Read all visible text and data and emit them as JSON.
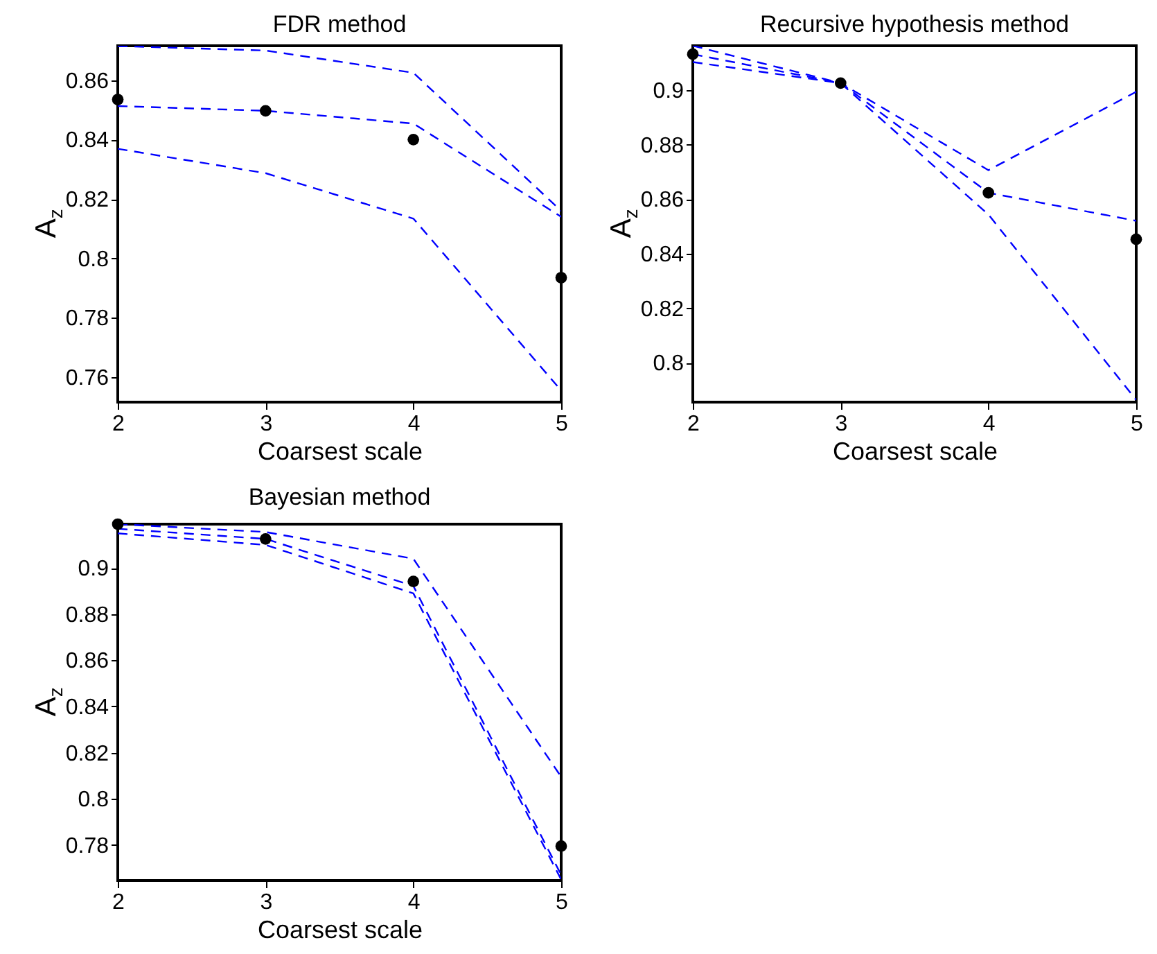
{
  "chart_data": [
    {
      "type": "line",
      "title": "FDR method",
      "xlabel": "Coarsest scale",
      "ylabel": "A$_{z}$",
      "x": [
        2,
        3,
        4,
        5
      ],
      "xlim": [
        2,
        5
      ],
      "xticks": [
        2,
        3,
        4,
        5
      ],
      "ylim": [
        0.7516,
        0.8716
      ],
      "yticks": [
        0.76,
        0.78,
        0.8,
        0.82,
        0.84,
        0.86
      ],
      "line_style": "dashed",
      "series": [
        {
          "type": "line",
          "color": "#0000ff",
          "values": [
            0.8715,
            0.87,
            0.8625,
            0.816
          ]
        },
        {
          "type": "line",
          "color": "#0000ff",
          "values": [
            0.8513,
            0.8497,
            0.8454,
            0.814
          ]
        },
        {
          "type": "line",
          "color": "#0000ff",
          "values": [
            0.8369,
            0.8287,
            0.8134,
            0.7555
          ]
        },
        {
          "type": "scatter",
          "marker": "circle",
          "color": "#000000",
          "values": [
            0.8535,
            0.8497,
            0.84,
            0.7935
          ]
        }
      ]
    },
    {
      "type": "line",
      "title": "Recursive hypothesis method",
      "xlabel": "Coarsest scale",
      "ylabel": "A$_{z}$",
      "x": [
        2,
        3,
        4,
        5
      ],
      "xlim": [
        2,
        5
      ],
      "xticks": [
        2,
        3,
        4,
        5
      ],
      "ylim": [
        0.7855,
        0.9164
      ],
      "yticks": [
        0.8,
        0.82,
        0.84,
        0.86,
        0.88,
        0.9
      ],
      "line_style": "dashed",
      "series": [
        {
          "type": "line",
          "color": "#0000ff",
          "values": [
            0.9164,
            0.9027,
            0.8707,
            0.8995
          ]
        },
        {
          "type": "line",
          "color": "#0000ff",
          "values": [
            0.9133,
            0.9027,
            0.8624,
            0.8521
          ]
        },
        {
          "type": "line",
          "color": "#0000ff",
          "values": [
            0.9104,
            0.9027,
            0.8544,
            0.7863
          ]
        },
        {
          "type": "scatter",
          "marker": "circle",
          "color": "#000000",
          "values": [
            0.9133,
            0.9027,
            0.8624,
            0.8453
          ]
        }
      ]
    },
    {
      "type": "line",
      "title": "Bayesian method",
      "xlabel": "Coarsest scale",
      "ylabel": "A$_{z}$",
      "x": [
        2,
        3,
        4,
        5
      ],
      "xlim": [
        2,
        5
      ],
      "xticks": [
        2,
        3,
        4,
        5
      ],
      "ylim": [
        0.7646,
        0.919
      ],
      "yticks": [
        0.78,
        0.8,
        0.82,
        0.84,
        0.86,
        0.88,
        0.9
      ],
      "line_style": "dashed",
      "series": [
        {
          "type": "line",
          "color": "#0000ff",
          "values": [
            0.919,
            0.9156,
            0.904,
            0.8095
          ]
        },
        {
          "type": "line",
          "color": "#0000ff",
          "values": [
            0.917,
            0.9126,
            0.8922,
            0.767
          ]
        },
        {
          "type": "line",
          "color": "#0000ff",
          "values": [
            0.915,
            0.91,
            0.889,
            0.765
          ]
        },
        {
          "type": "scatter",
          "marker": "circle",
          "color": "#000000",
          "values": [
            0.919,
            0.9126,
            0.8942,
            0.7795
          ]
        }
      ]
    }
  ]
}
